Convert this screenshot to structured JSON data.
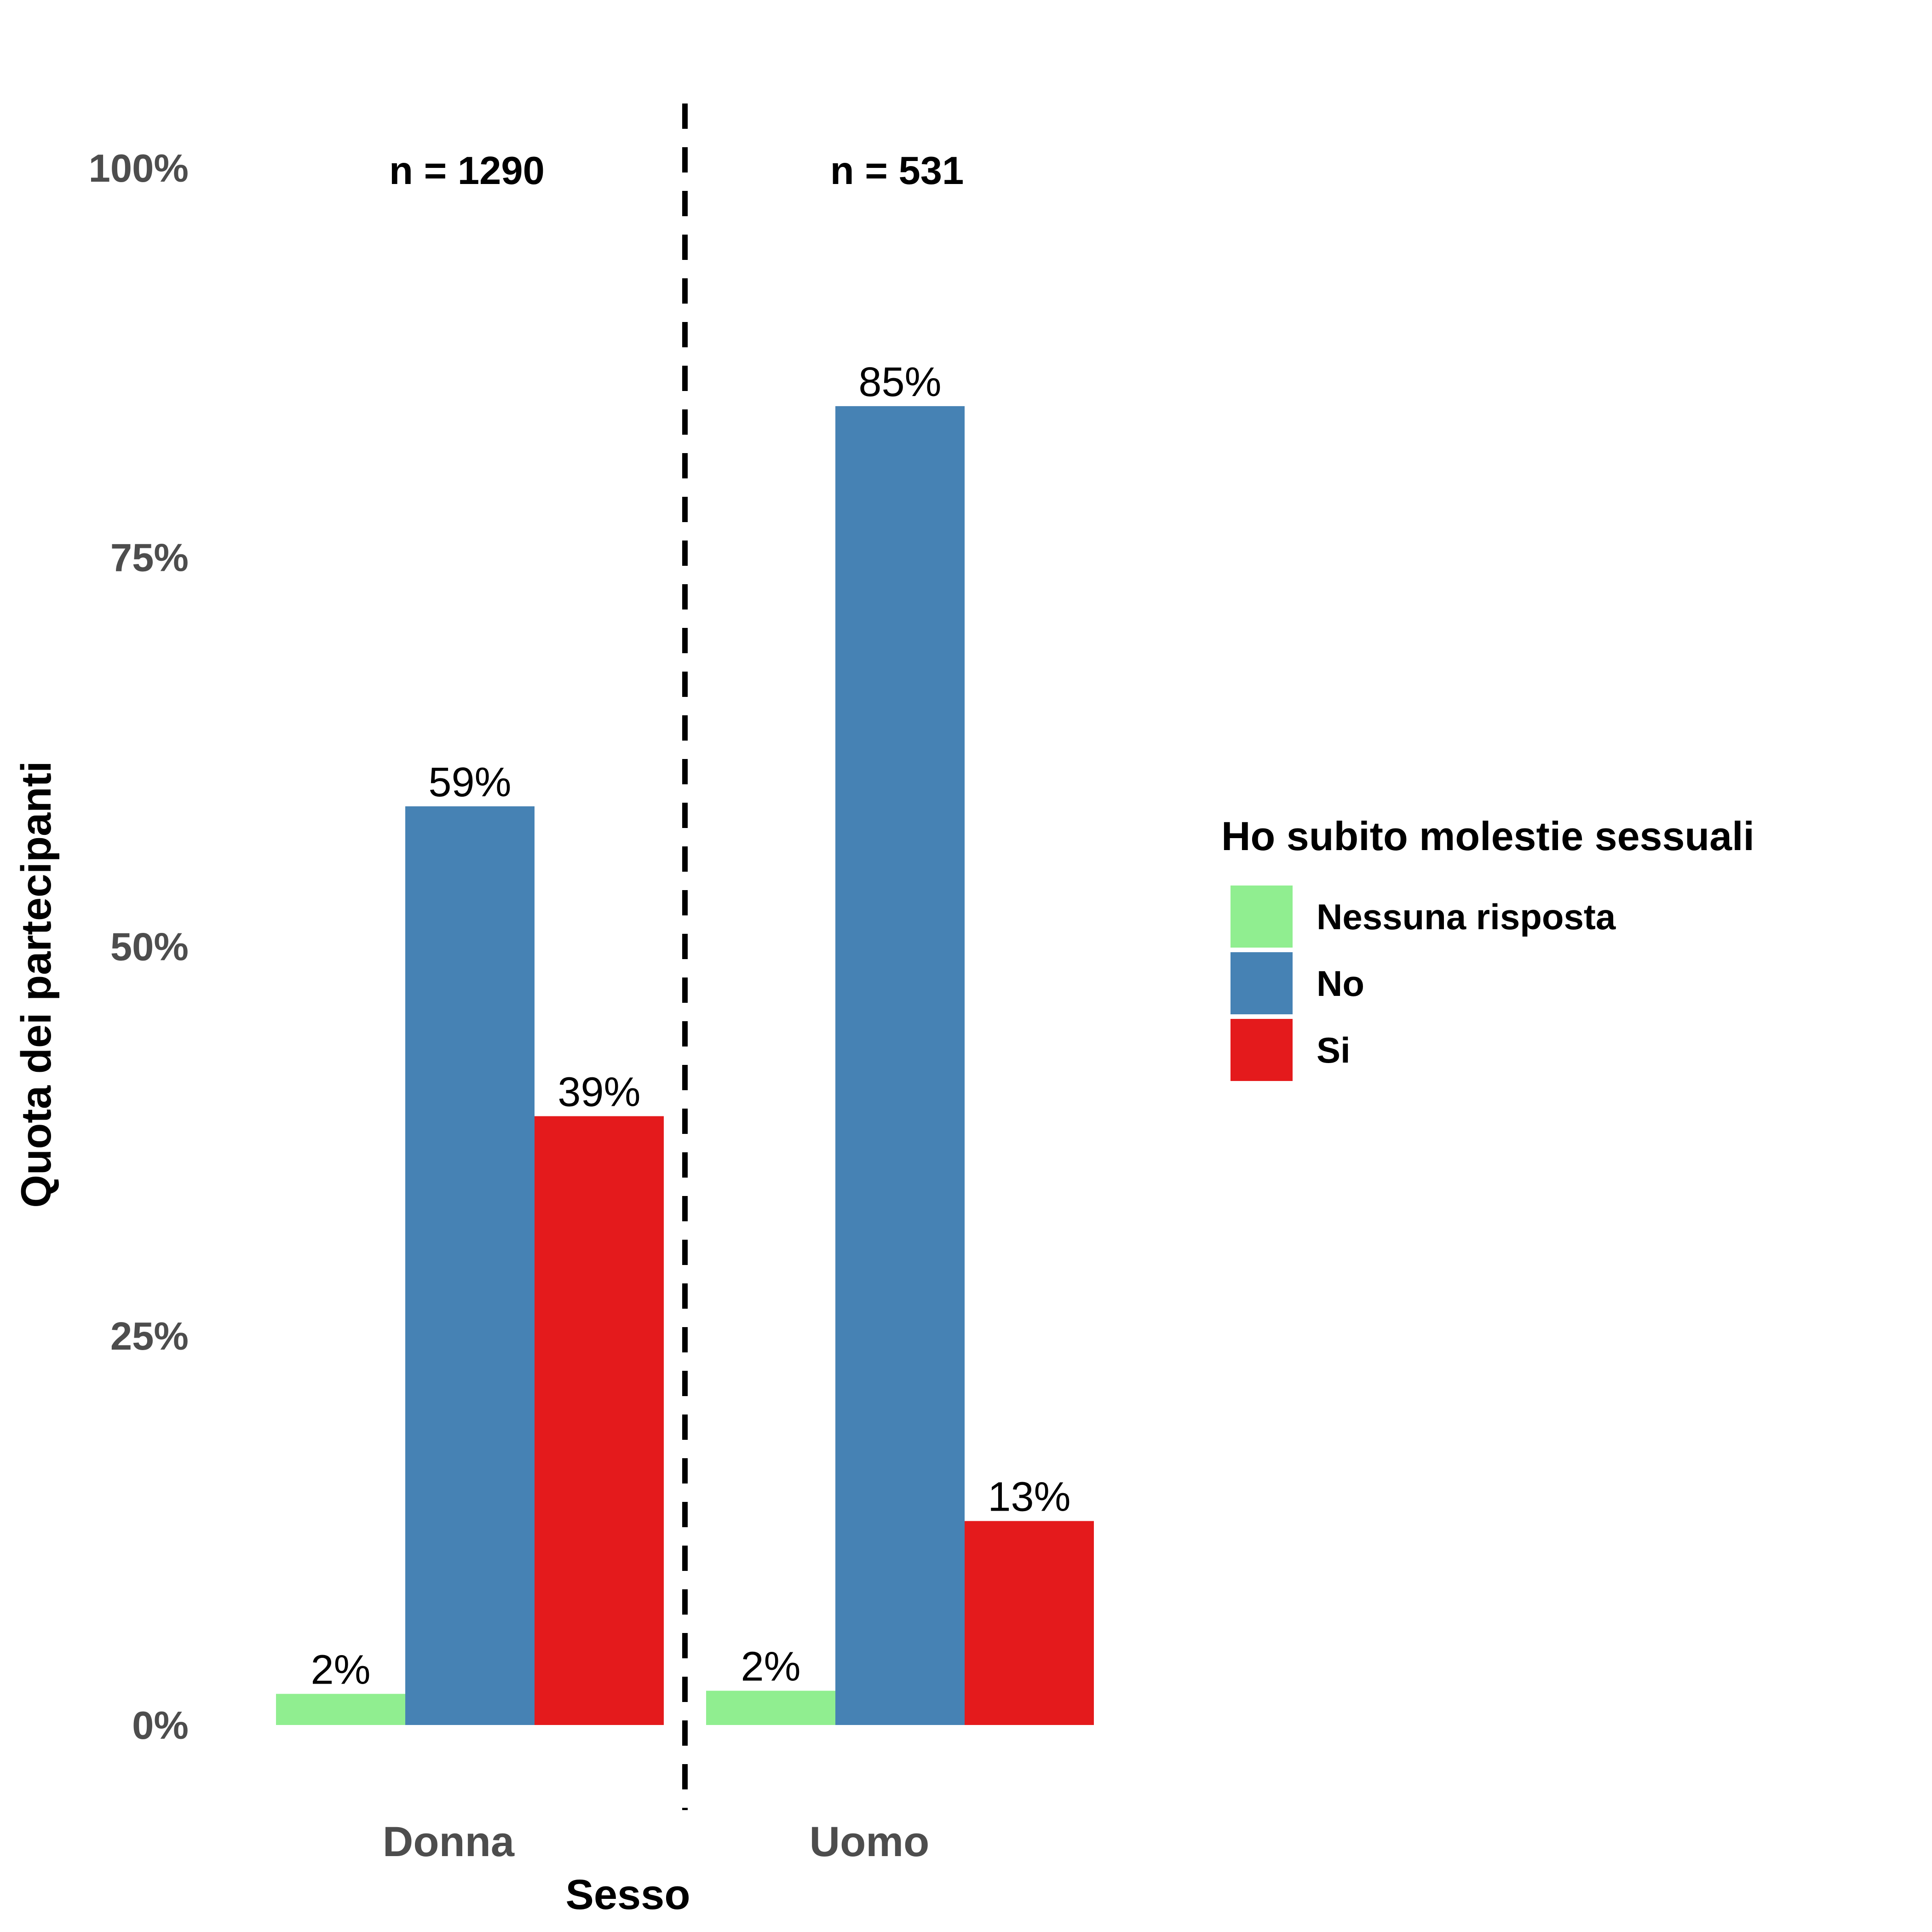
{
  "chart_data": {
    "type": "bar",
    "xlabel": "Sesso",
    "ylabel": "Quota dei partecipanti",
    "ylim": [
      0,
      1
    ],
    "y_ticks": [
      0,
      0.25,
      0.5,
      0.75,
      1.0
    ],
    "y_tick_labels": [
      "0%",
      "25%",
      "50%",
      "75%",
      "100%"
    ],
    "categories": [
      "Donna",
      "Uomo"
    ],
    "group_counts": [
      "n = 1290",
      "n = 531"
    ],
    "series": [
      {
        "name": "Nessuna risposta",
        "color": "#90ee90",
        "values": [
          0.02,
          0.022
        ],
        "labels": [
          "2%",
          "2%"
        ]
      },
      {
        "name": "No",
        "color": "#4682b4",
        "values": [
          0.59,
          0.847
        ],
        "labels": [
          "59%",
          "85%"
        ]
      },
      {
        "name": "Si",
        "color": "#e41a1c",
        "values": [
          0.391,
          0.131
        ],
        "labels": [
          "39%",
          "13%"
        ]
      }
    ],
    "legend": {
      "title": "Ho subito molestie sessuali",
      "position": "right"
    },
    "grid": false,
    "separator": "dashed vertical line between groups"
  }
}
